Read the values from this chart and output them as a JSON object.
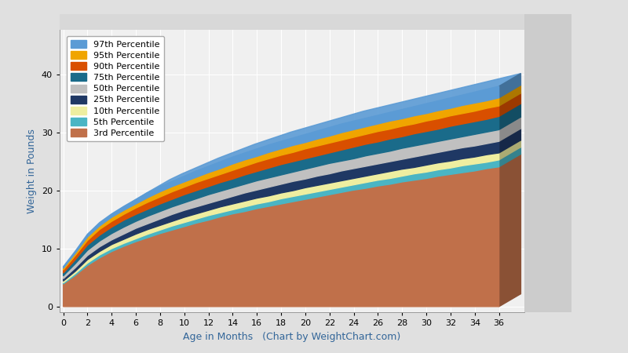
{
  "title": "",
  "xlabel": "Age in Months   (Chart by WeightChart.com)",
  "ylabel": "Weight in Pounds",
  "xlim": [
    0,
    36
  ],
  "ylim": [
    0,
    45
  ],
  "xticks": [
    0,
    2,
    4,
    6,
    8,
    10,
    12,
    14,
    16,
    18,
    20,
    22,
    24,
    26,
    28,
    30,
    32,
    34,
    36
  ],
  "yticks": [
    0,
    10,
    20,
    30,
    40
  ],
  "fig_bg": "#e0e0e0",
  "plot_bg": "#f0f0f0",
  "grid_color": "#ffffff",
  "percentiles": [
    {
      "label": "97th Percentile",
      "color": "#5b9bd5",
      "values": [
        6.9,
        9.6,
        12.5,
        14.5,
        16.0,
        17.3,
        18.5,
        19.7,
        20.7,
        21.6,
        22.5,
        23.4,
        24.2,
        25.0,
        25.8,
        26.5,
        27.2,
        27.9,
        28.5,
        29.1,
        29.7,
        30.3,
        30.9,
        31.5,
        32.0,
        32.5,
        33.0,
        33.5,
        34.0,
        34.5,
        35.0,
        35.5,
        36.0,
        36.5,
        37.0,
        37.5,
        38.0
      ]
    },
    {
      "label": "95th Percentile",
      "color": "#f0a500",
      "values": [
        6.6,
        9.2,
        12.0,
        13.9,
        15.4,
        16.6,
        17.7,
        18.8,
        19.8,
        20.7,
        21.5,
        22.3,
        23.1,
        23.8,
        24.6,
        25.3,
        25.9,
        26.6,
        27.2,
        27.8,
        28.3,
        28.9,
        29.4,
        30.0,
        30.5,
        31.0,
        31.5,
        32.0,
        32.4,
        32.9,
        33.3,
        33.8,
        34.2,
        34.7,
        35.1,
        35.5,
        36.0
      ]
    },
    {
      "label": "90th Percentile",
      "color": "#d94f00",
      "values": [
        6.3,
        8.8,
        11.4,
        13.3,
        14.7,
        15.9,
        17.0,
        18.0,
        18.9,
        19.8,
        20.6,
        21.4,
        22.1,
        22.8,
        23.5,
        24.2,
        24.9,
        25.5,
        26.1,
        26.6,
        27.2,
        27.7,
        28.2,
        28.7,
        29.2,
        29.7,
        30.2,
        30.6,
        31.1,
        31.5,
        32.0,
        32.4,
        32.9,
        33.3,
        33.7,
        34.2,
        34.6
      ]
    },
    {
      "label": "75th Percentile",
      "color": "#1a6b8a",
      "values": [
        5.8,
        8.1,
        10.6,
        12.3,
        13.7,
        14.9,
        15.9,
        16.8,
        17.7,
        18.5,
        19.3,
        20.0,
        20.7,
        21.4,
        22.0,
        22.7,
        23.3,
        23.9,
        24.5,
        25.0,
        25.5,
        26.0,
        26.5,
        27.0,
        27.5,
        28.0,
        28.4,
        28.9,
        29.3,
        29.8,
        30.2,
        30.6,
        31.1,
        31.5,
        31.9,
        32.3,
        32.8
      ]
    },
    {
      "label": "50th Percentile",
      "color": "#c0c0c0",
      "values": [
        5.3,
        7.4,
        9.7,
        11.3,
        12.6,
        13.7,
        14.7,
        15.6,
        16.4,
        17.2,
        17.9,
        18.6,
        19.3,
        19.9,
        20.5,
        21.1,
        21.7,
        22.2,
        22.7,
        23.2,
        23.7,
        24.2,
        24.7,
        25.1,
        25.5,
        26.0,
        26.4,
        26.8,
        27.3,
        27.7,
        28.1,
        28.5,
        28.9,
        29.3,
        29.7,
        30.1,
        30.5
      ]
    },
    {
      "label": "25th Percentile",
      "color": "#1f3864",
      "values": [
        4.8,
        6.7,
        8.8,
        10.3,
        11.5,
        12.5,
        13.5,
        14.3,
        15.1,
        15.9,
        16.6,
        17.2,
        17.8,
        18.4,
        19.0,
        19.6,
        20.1,
        20.6,
        21.1,
        21.6,
        22.0,
        22.5,
        22.9,
        23.4,
        23.8,
        24.2,
        24.6,
        25.0,
        25.4,
        25.8,
        26.2,
        26.6,
        27.0,
        27.4,
        27.7,
        28.1,
        28.5
      ]
    },
    {
      "label": "10th Percentile",
      "color": "#eeeea0",
      "values": [
        4.4,
        6.1,
        8.1,
        9.5,
        10.7,
        11.6,
        12.5,
        13.3,
        14.0,
        14.7,
        15.4,
        16.0,
        16.6,
        17.2,
        17.7,
        18.2,
        18.7,
        19.1,
        19.6,
        20.0,
        20.5,
        20.9,
        21.3,
        21.7,
        22.1,
        22.5,
        22.9,
        23.3,
        23.7,
        24.0,
        24.4,
        24.8,
        25.1,
        25.5,
        25.8,
        26.2,
        26.5
      ]
    },
    {
      "label": "5th Percentile",
      "color": "#4ab5c4",
      "values": [
        4.1,
        5.7,
        7.5,
        8.9,
        10.0,
        10.9,
        11.7,
        12.5,
        13.2,
        13.9,
        14.5,
        15.1,
        15.7,
        16.2,
        16.7,
        17.2,
        17.7,
        18.1,
        18.6,
        19.0,
        19.4,
        19.8,
        20.2,
        20.6,
        21.0,
        21.4,
        21.8,
        22.1,
        22.5,
        22.9,
        23.2,
        23.6,
        23.9,
        24.3,
        24.6,
        24.9,
        25.3
      ]
    },
    {
      "label": "3rd Percentile",
      "color": "#c0704a",
      "values": [
        3.9,
        5.4,
        7.1,
        8.4,
        9.5,
        10.4,
        11.2,
        11.9,
        12.6,
        13.2,
        13.8,
        14.4,
        14.9,
        15.5,
        16.0,
        16.4,
        16.9,
        17.3,
        17.7,
        18.1,
        18.5,
        18.9,
        19.3,
        19.7,
        20.1,
        20.4,
        20.8,
        21.1,
        21.5,
        21.8,
        22.1,
        22.5,
        22.8,
        23.1,
        23.4,
        23.8,
        24.1
      ]
    }
  ],
  "legend_fontsize": 8,
  "axis_fontsize": 8,
  "label_fontsize": 9,
  "wall_color": "#cccccc",
  "wall_top_color": "#d8d8d8",
  "side_face_darken": 0.72
}
